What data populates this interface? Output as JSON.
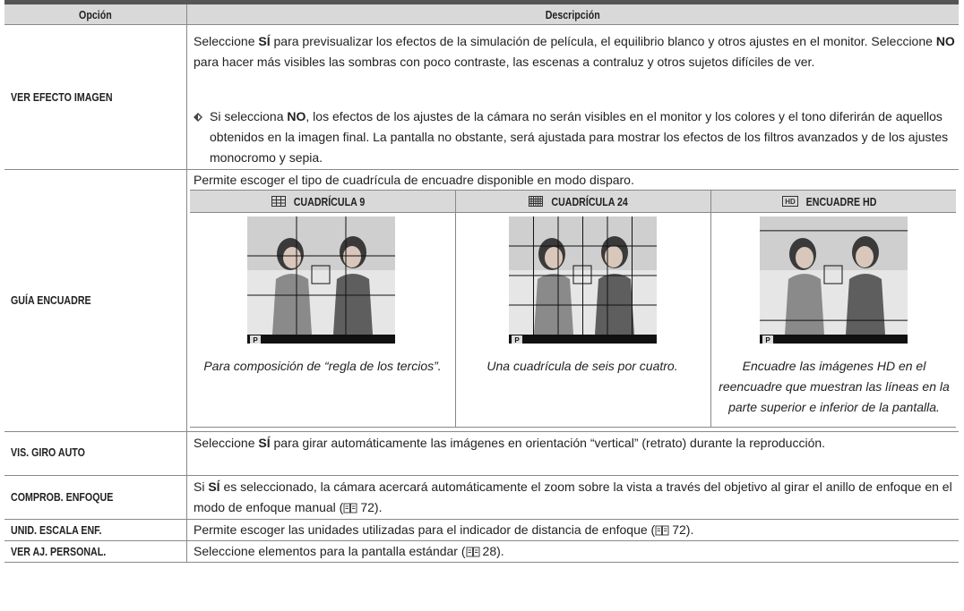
{
  "header": {
    "option": "Opción",
    "description": "Descripción"
  },
  "rows": [
    {
      "option": "VER EFECTO IMAGEN",
      "text": [
        "Seleccione ",
        "SÍ",
        " para previsualizar los efectos de la simulación de película, el equilibrio blanco y otros ajustes en el monitor. Seleccione ",
        "NO",
        " para hacer más visibles las sombras con poco contraste, las escenas a contraluz y otros sujetos difíciles de ver."
      ],
      "note": [
        "Si selecciona ",
        "NO",
        ", los efectos de los ajustes de la cámara no serán visibles en el monitor y los colores y el tono diferirán de aquellos obtenidos en la imagen final. La pantalla no obstante, será ajustada para mostrar los efectos de los filtros avanzados y de los ajustes monocromo y sepia."
      ]
    },
    {
      "option": "GUÍA ENCUADRE",
      "intro": "Permite escoger el tipo de cuadrícula de encuadre disponible en modo disparo.",
      "choices": [
        {
          "label": "CUADRÍCULA 9",
          "mode": "P",
          "caption": "Para composición de “regla de los tercios”."
        },
        {
          "label": "CUADRÍCULA 24",
          "mode": "P",
          "caption": "Una cuadrícula de seis por cuatro."
        },
        {
          "label": "ENCUADRE HD",
          "mode": "P",
          "caption": "Encuadre las imágenes HD en el reencuadre que muestran las líneas en la parte superior e inferior de la pantalla."
        }
      ]
    },
    {
      "option": "VIS. GIRO AUTO",
      "text": [
        "Seleccione ",
        "SÍ",
        " para girar automáticamente las imágenes en orientación “vertical” (retrato) durante la reproducción."
      ]
    },
    {
      "option": "COMPROB. ENFOQUE",
      "text": [
        "Si ",
        "SÍ",
        " es seleccionado, la cámara acercará automáticamente el zoom sobre la vista a través del objetivo al girar el anillo de enfoque en el modo de enfoque manual (",
        "72",
        ")."
      ]
    },
    {
      "option": "UNID. ESCALA ENF.",
      "text": [
        "Permite escoger las unidades utilizadas para el indicador de distancia de enfoque (",
        "72",
        ")."
      ]
    },
    {
      "option": "VER AJ. PERSONAL.",
      "text": [
        "Seleccione elementos para la pantalla estándar (",
        "28",
        ")."
      ]
    }
  ]
}
